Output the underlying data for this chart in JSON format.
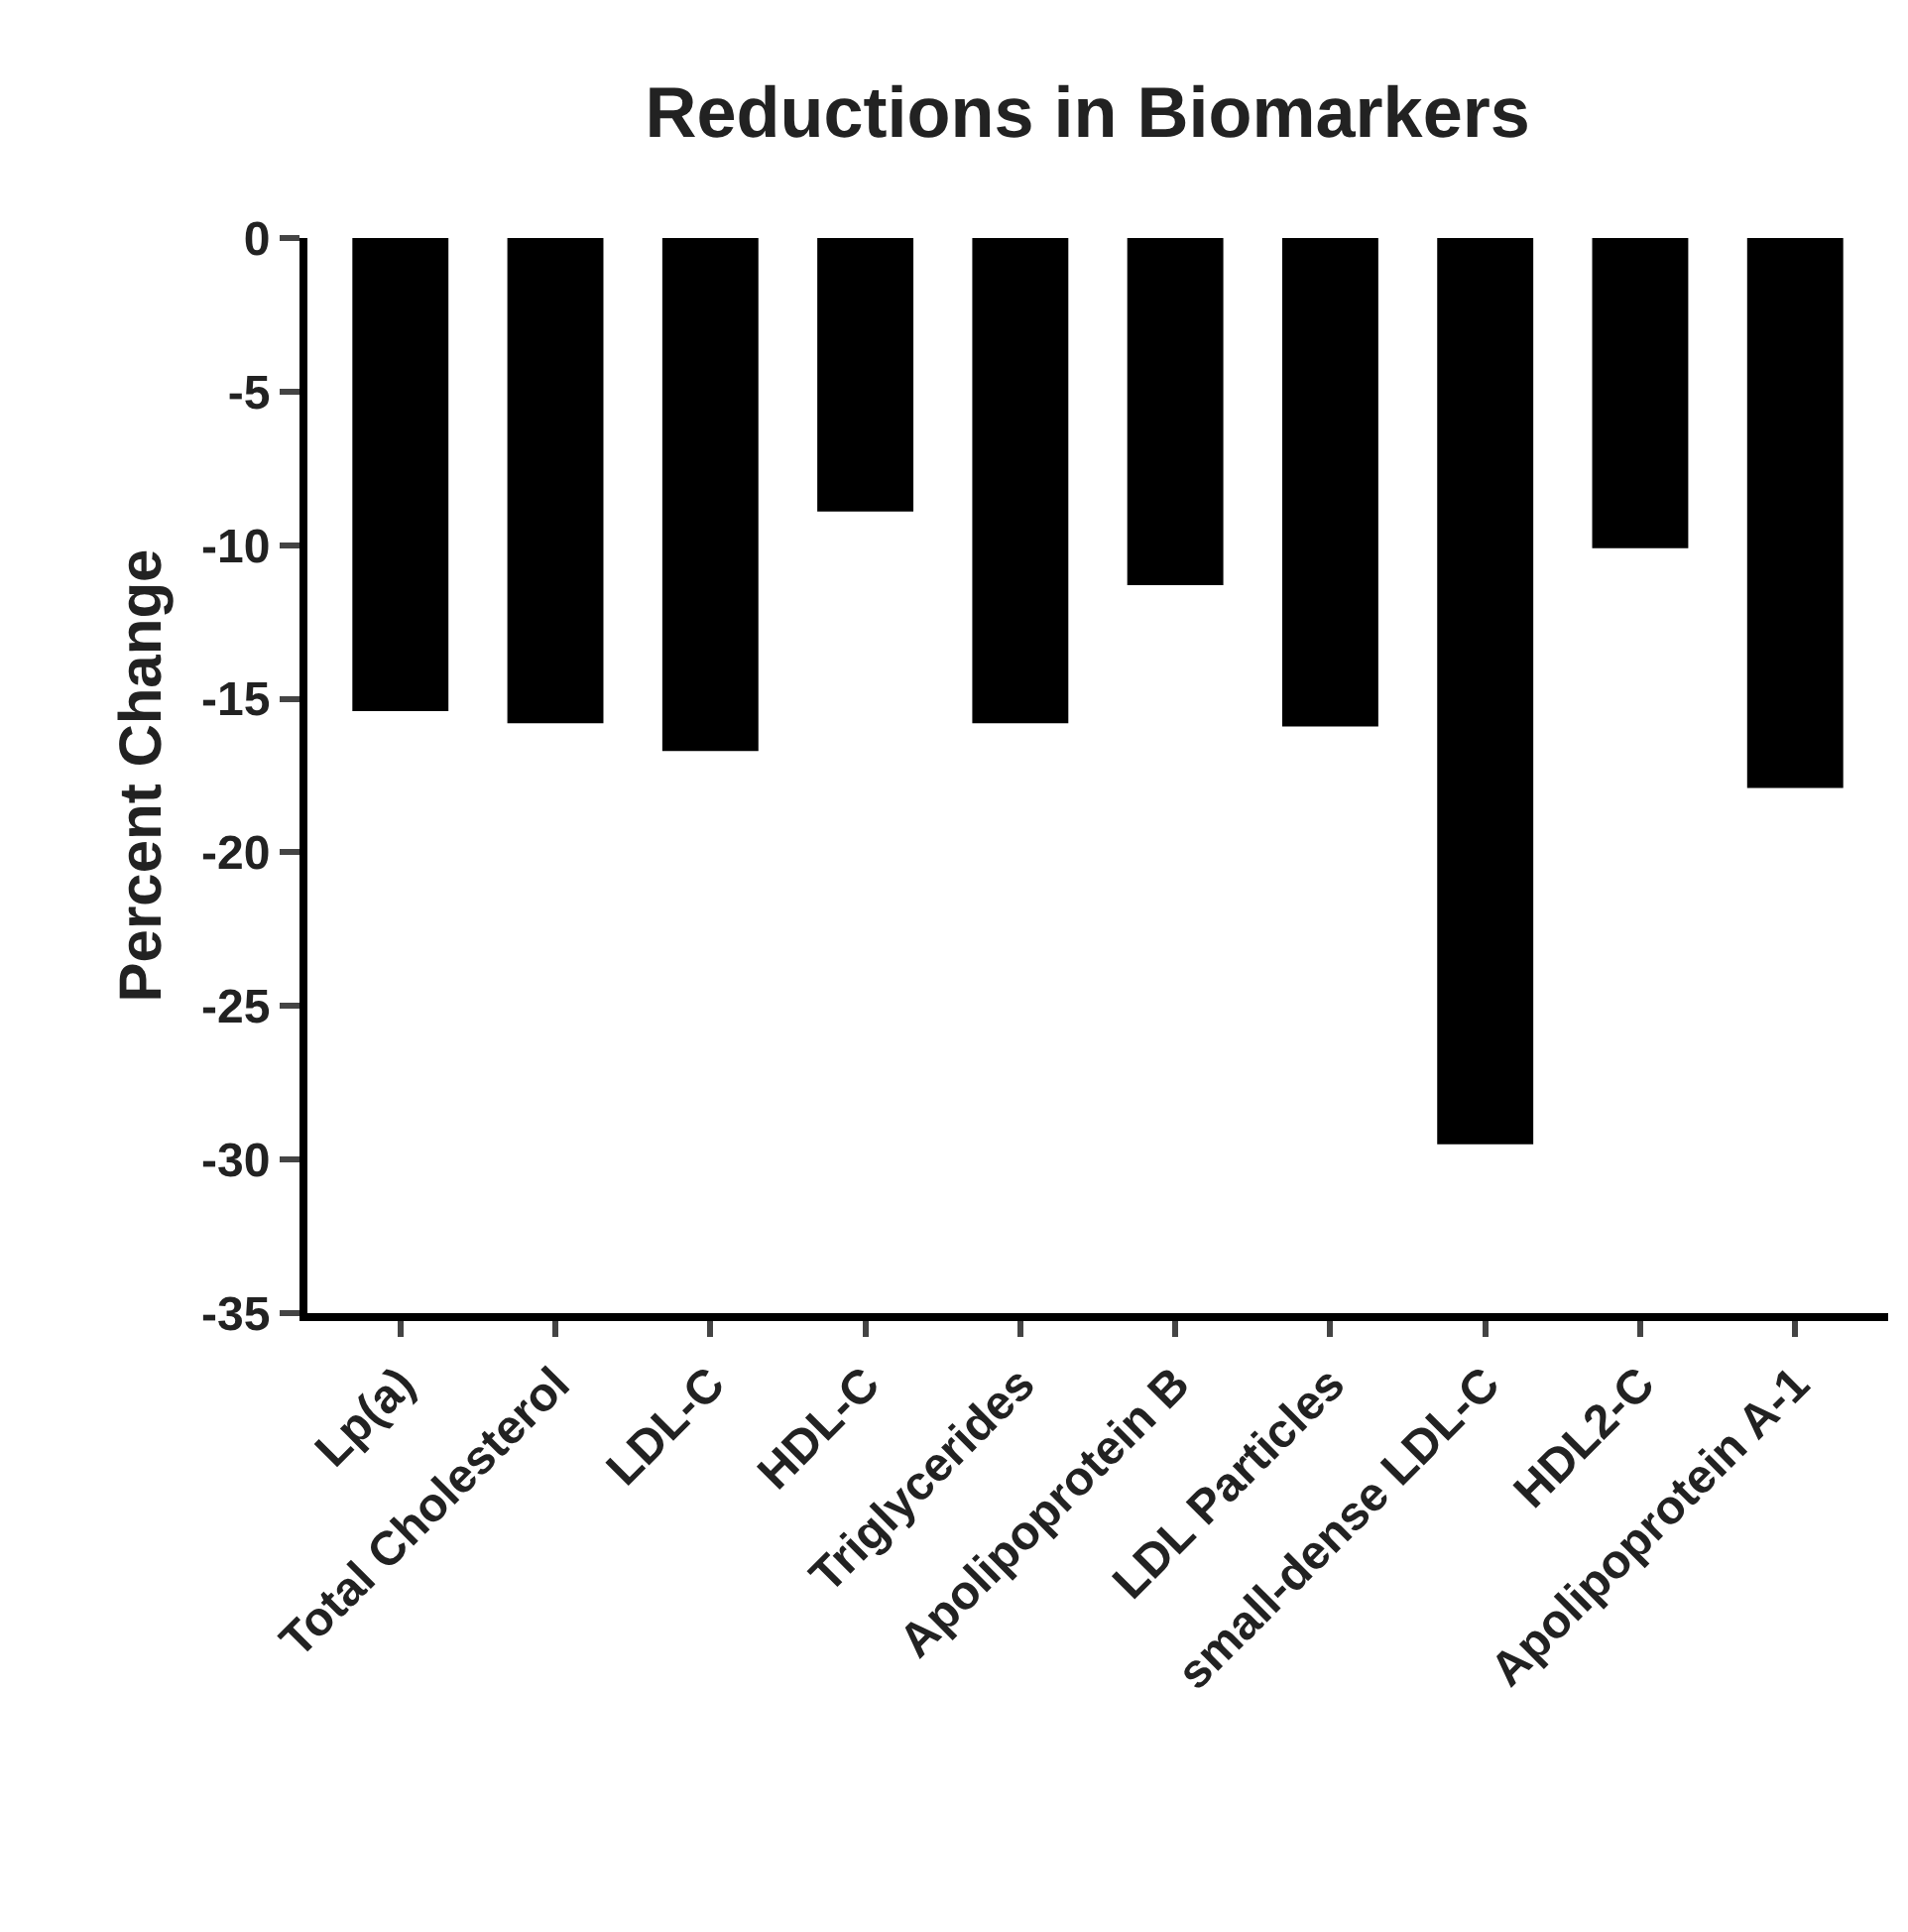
{
  "chart_data": {
    "type": "bar",
    "title": "Reductions in Biomarkers",
    "ylabel": "Percent Change",
    "categories": [
      "Lp(a)",
      "Total Cholesterol",
      "LDL-C",
      "HDL-C",
      "Triglycerides",
      "Apolipoprotein B",
      "LDL Particles",
      "small-dense LDL-C",
      "HDL2-C",
      "Apolipoprotein A-1"
    ],
    "values": [
      -15.4,
      -15.8,
      -16.7,
      -8.9,
      -15.8,
      -11.3,
      -15.9,
      -29.5,
      -10.1,
      -17.9
    ],
    "color": "#000000",
    "ylim": [
      -35,
      0
    ],
    "yticks": [
      0,
      -5,
      -10,
      -15,
      -20,
      -25,
      -30,
      -35
    ],
    "grid": false,
    "legend": false
  }
}
